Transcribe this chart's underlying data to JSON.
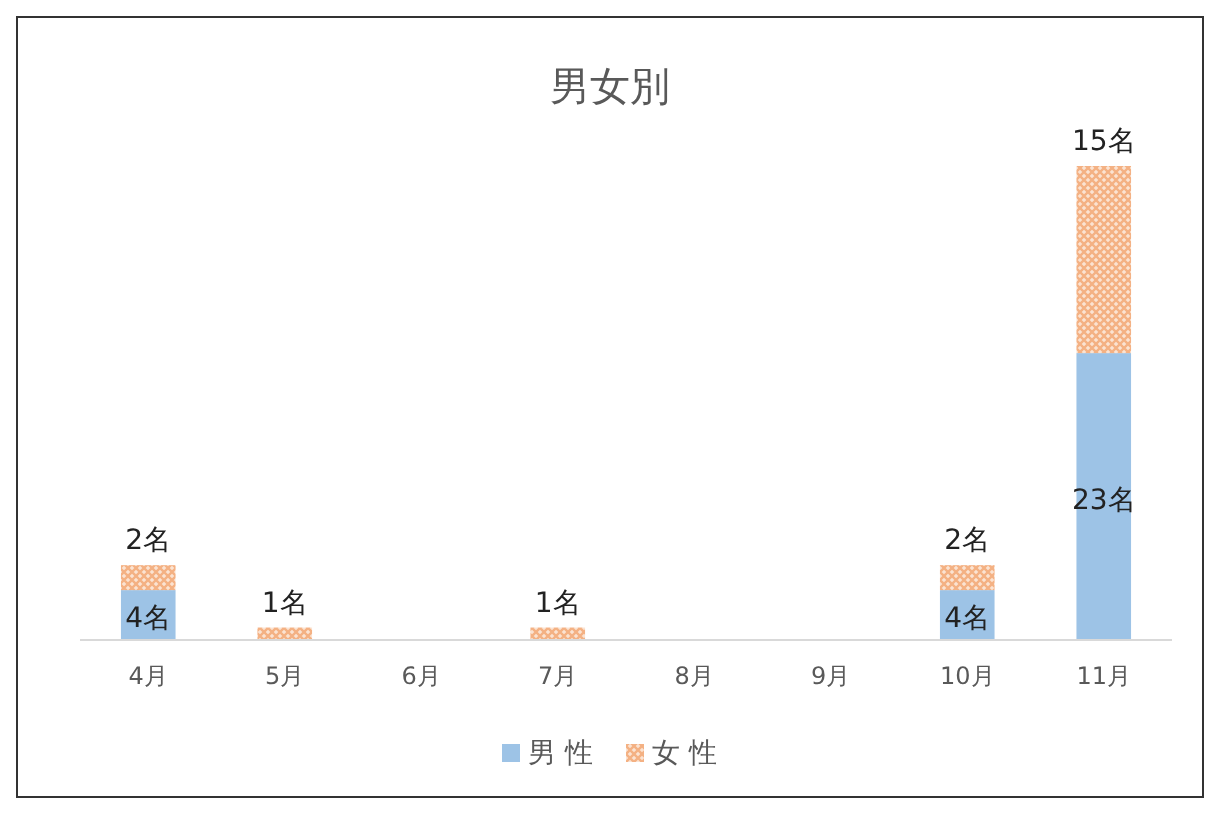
{
  "chart_data": {
    "type": "bar",
    "title": "男女別",
    "stacked": true,
    "legend": "bottom",
    "categories": [
      "4月",
      "5月",
      "6月",
      "7月",
      "8月",
      "9月",
      "10月",
      "11月"
    ],
    "series": [
      {
        "name": "男 性",
        "color": "#9dc3e6",
        "values": [
          4,
          0,
          0,
          0,
          0,
          0,
          4,
          23
        ],
        "value_labels": [
          "4名",
          null,
          null,
          null,
          null,
          null,
          "4名",
          "23名"
        ]
      },
      {
        "name": "女 性",
        "color": "#f4b183",
        "values": [
          2,
          1,
          0,
          1,
          0,
          0,
          2,
          15
        ],
        "value_labels": [
          "2名",
          "1名",
          null,
          "1名",
          null,
          null,
          "2名",
          "15名"
        ]
      }
    ]
  }
}
